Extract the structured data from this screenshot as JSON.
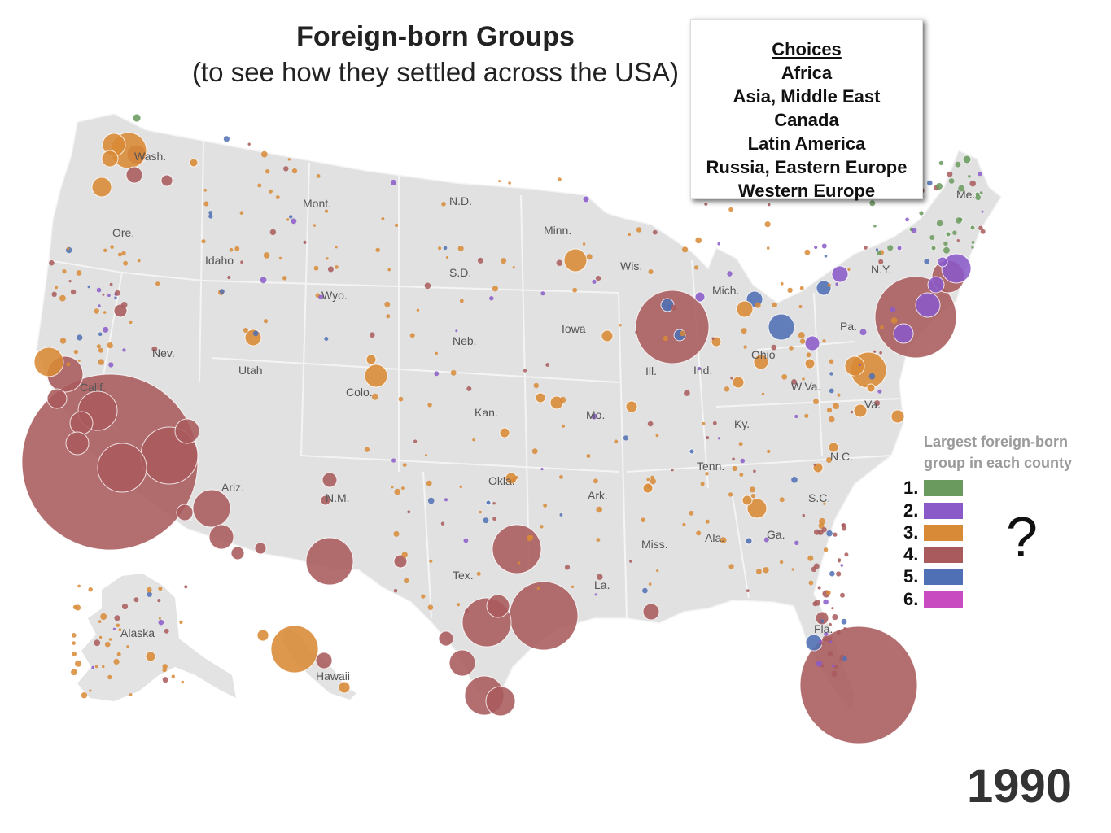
{
  "title": "Foreign-born Groups",
  "subtitle": "(to see how they settled across the USA)",
  "choices": {
    "heading": "Choices",
    "items": [
      "Africa",
      "Asia, Middle East",
      "Canada",
      "Latin America",
      "Russia, Eastern Europe",
      "Western Europe"
    ]
  },
  "legend": {
    "title_line1": "Largest foreign-born",
    "title_line2": "group in each county",
    "rows": [
      {
        "label": "1.",
        "color": "#6a9a5e"
      },
      {
        "label": "2.",
        "color": "#8a5ac8"
      },
      {
        "label": "3.",
        "color": "#d88a36"
      },
      {
        "label": "4.",
        "color": "#a85a5c"
      },
      {
        "label": "5.",
        "color": "#4f70b4"
      },
      {
        "label": "6.",
        "color": "#c84cc0"
      }
    ]
  },
  "question_mark": "?",
  "year": "1990",
  "state_labels": [
    {
      "label": "Wash."
    },
    {
      "label": "Ore."
    },
    {
      "label": "Idaho"
    },
    {
      "label": "Mont."
    },
    {
      "label": "Wyo."
    },
    {
      "label": "N.D."
    },
    {
      "label": "S.D."
    },
    {
      "label": "Neb."
    },
    {
      "label": "Minn."
    },
    {
      "label": "Iowa"
    },
    {
      "label": "Wis."
    },
    {
      "label": "Mich."
    },
    {
      "label": "Ill."
    },
    {
      "label": "Ind."
    },
    {
      "label": "Ohio"
    },
    {
      "label": "Pa."
    },
    {
      "label": "N.Y."
    },
    {
      "label": "Me."
    },
    {
      "label": "W.Va."
    },
    {
      "label": "Va."
    },
    {
      "label": "Ky."
    },
    {
      "label": "Tenn."
    },
    {
      "label": "N.C."
    },
    {
      "label": "S.C."
    },
    {
      "label": "Ga."
    },
    {
      "label": "Ala."
    },
    {
      "label": "Miss."
    },
    {
      "label": "La."
    },
    {
      "label": "Ark."
    },
    {
      "label": "Mo."
    },
    {
      "label": "Kan."
    },
    {
      "label": "Okla."
    },
    {
      "label": "Tex."
    },
    {
      "label": "N.M."
    },
    {
      "label": "Colo."
    },
    {
      "label": "Utah"
    },
    {
      "label": "Nev."
    },
    {
      "label": "Calif."
    },
    {
      "label": "Ariz."
    },
    {
      "label": "Alaska"
    },
    {
      "label": "Hawaii"
    },
    {
      "label": "Fla."
    }
  ]
}
